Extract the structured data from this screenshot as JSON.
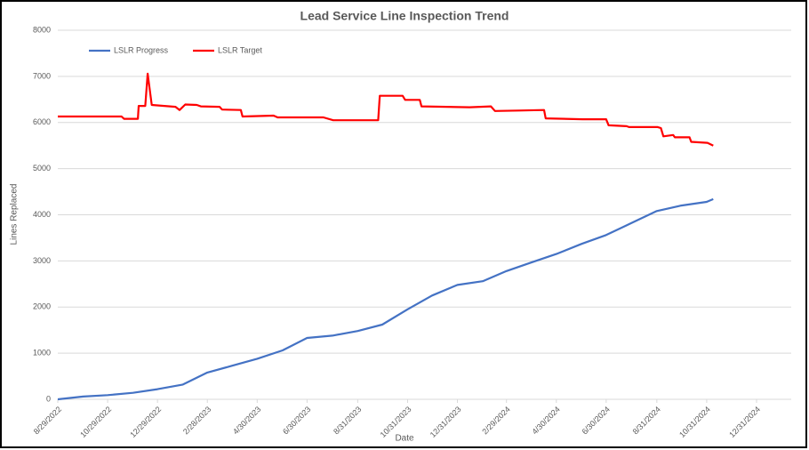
{
  "chart_data": {
    "type": "line",
    "title": "Lead Service Line Inspection Trend",
    "x_label": "Date",
    "y_label": "Lines Replaced",
    "ylim": [
      0,
      8000
    ],
    "yticks": [
      0,
      1000,
      2000,
      3000,
      4000,
      5000,
      6000,
      7000,
      8000
    ],
    "xlim": [
      "8/29/2022",
      "12/31/2024"
    ],
    "xticks": [
      "8/29/2022",
      "10/29/2022",
      "12/29/2022",
      "2/28/2023",
      "4/30/2023",
      "6/30/2023",
      "8/31/2023",
      "10/31/2023",
      "12/31/2023",
      "2/29/2024",
      "4/30/2024",
      "6/30/2024",
      "8/31/2024",
      "10/31/2024",
      "12/31/2024"
    ],
    "grid": true,
    "legend": "top-left",
    "series": [
      {
        "name": "LSLR Progress",
        "color": "#4472c4",
        "x": [
          "8/29/2022",
          "9/29/2022",
          "10/29/2022",
          "11/29/2022",
          "12/29/2022",
          "1/29/2023",
          "2/28/2023",
          "3/31/2023",
          "4/30/2023",
          "5/31/2023",
          "6/30/2023",
          "7/31/2023",
          "8/31/2023",
          "9/30/2023",
          "10/31/2023",
          "11/30/2023",
          "12/31/2023",
          "1/31/2024",
          "2/29/2024",
          "3/31/2024",
          "4/30/2024",
          "5/31/2024",
          "6/30/2024",
          "7/31/2024",
          "8/31/2024",
          "9/30/2024",
          "10/31/2024",
          "11/8/2024"
        ],
        "values": [
          0,
          60,
          90,
          140,
          220,
          320,
          580,
          730,
          880,
          1060,
          1330,
          1380,
          1480,
          1620,
          1950,
          2250,
          2480,
          2560,
          2780,
          2970,
          3150,
          3370,
          3560,
          3820,
          4080,
          4200,
          4280,
          4340
        ]
      },
      {
        "name": "LSLR Target",
        "color": "#ff0000",
        "x": [
          "8/29/2022",
          "11/15/2022",
          "11/18/2022",
          "12/5/2022",
          "12/6/2022",
          "12/14/2022",
          "12/17/2022",
          "12/22/2022",
          "1/20/2023",
          "1/25/2023",
          "2/1/2023",
          "2/15/2023",
          "2/20/2023",
          "3/15/2023",
          "3/18/2023",
          "4/10/2023",
          "4/12/2023",
          "5/20/2023",
          "5/25/2023",
          "7/20/2023",
          "8/1/2023",
          "9/25/2023",
          "9/27/2023",
          "10/25/2023",
          "10/28/2023",
          "11/15/2023",
          "11/17/2023",
          "1/15/2024",
          "2/10/2024",
          "2/15/2024",
          "3/15/2024",
          "4/15/2024",
          "4/17/2024",
          "6/1/2024",
          "6/30/2024",
          "7/3/2024",
          "7/25/2024",
          "7/28/2024",
          "9/1/2024",
          "9/5/2024",
          "9/8/2024",
          "9/20/2024",
          "9/22/2024",
          "10/10/2024",
          "10/12/2024",
          "11/1/2024",
          "11/8/2024"
        ],
        "values": [
          6130,
          6130,
          6080,
          6080,
          6360,
          6360,
          7060,
          6380,
          6340,
          6270,
          6390,
          6380,
          6350,
          6340,
          6280,
          6270,
          6130,
          6150,
          6110,
          6110,
          6050,
          6050,
          6580,
          6580,
          6490,
          6490,
          6350,
          6330,
          6350,
          6250,
          6260,
          6270,
          6090,
          6070,
          6070,
          5940,
          5920,
          5900,
          5900,
          5880,
          5700,
          5730,
          5680,
          5680,
          5580,
          5560,
          5500
        ]
      }
    ]
  }
}
